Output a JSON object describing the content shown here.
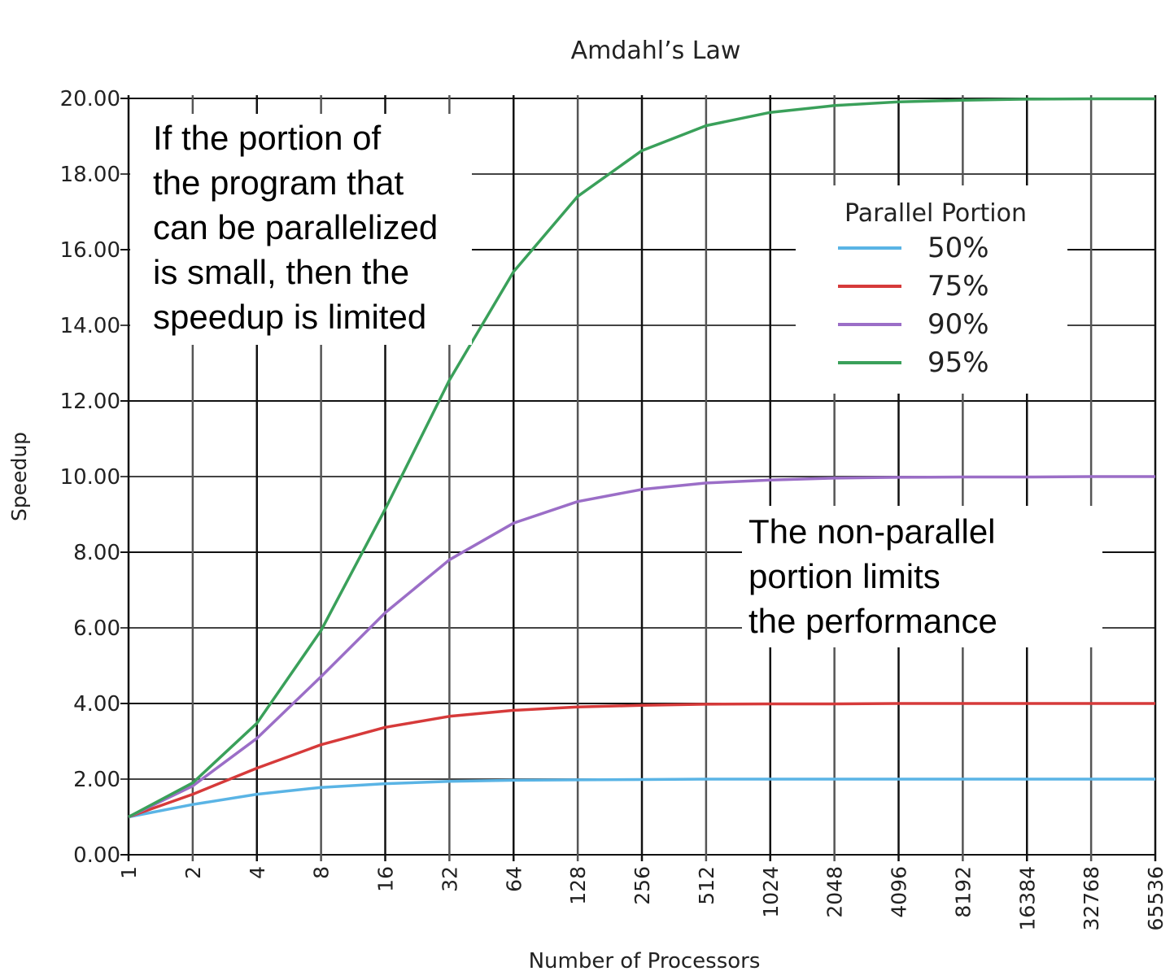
{
  "chart_data": {
    "type": "line",
    "title": "Amdahl’s Law",
    "xlabel": "Number of Processors",
    "ylabel": "Speedup",
    "x_scale": "log2",
    "categories": [
      "1",
      "2",
      "4",
      "8",
      "16",
      "32",
      "64",
      "128",
      "256",
      "512",
      "1024",
      "2048",
      "4096",
      "8192",
      "16384",
      "32768",
      "65536"
    ],
    "x": [
      1,
      2,
      4,
      8,
      16,
      32,
      64,
      128,
      256,
      512,
      1024,
      2048,
      4096,
      8192,
      16384,
      32768,
      65536
    ],
    "ylim": [
      0,
      20
    ],
    "yticks": [
      "0.00",
      "2.00",
      "4.00",
      "6.00",
      "8.00",
      "10.00",
      "12.00",
      "14.00",
      "16.00",
      "18.00",
      "20.00"
    ],
    "grid": true,
    "legend": {
      "title": "Parallel Portion",
      "placement": "top-right"
    },
    "series": [
      {
        "name": "50%",
        "color": "#5ab4e5",
        "values": [
          1.0,
          1.33,
          1.6,
          1.78,
          1.88,
          1.94,
          1.97,
          1.98,
          1.99,
          2.0,
          2.0,
          2.0,
          2.0,
          2.0,
          2.0,
          2.0,
          2.0
        ]
      },
      {
        "name": "75%",
        "color": "#d63a3a",
        "values": [
          1.0,
          1.6,
          2.29,
          2.91,
          3.37,
          3.66,
          3.82,
          3.91,
          3.95,
          3.98,
          3.99,
          3.99,
          4.0,
          4.0,
          4.0,
          4.0,
          4.0
        ]
      },
      {
        "name": "90%",
        "color": "#9b6ec7",
        "values": [
          1.0,
          1.82,
          3.08,
          4.71,
          6.4,
          7.8,
          8.77,
          9.34,
          9.66,
          9.83,
          9.91,
          9.96,
          9.98,
          9.99,
          9.99,
          10.0,
          10.0
        ]
      },
      {
        "name": "95%",
        "color": "#3aa05a",
        "values": [
          1.0,
          1.9,
          3.48,
          5.93,
          9.14,
          12.55,
          15.42,
          17.41,
          18.62,
          19.28,
          19.63,
          19.81,
          19.91,
          19.95,
          19.98,
          19.99,
          19.99
        ]
      }
    ],
    "annotations": [
      {
        "id": "small-portion",
        "position": "top-left",
        "lines": [
          "If the portion of",
          "the program that",
          "can be parallelized",
          "is small, then the",
          "speedup is limited"
        ]
      },
      {
        "id": "non-parallel",
        "position": "middle-right",
        "lines": [
          "The non-parallel",
          "portion limits",
          "the performance"
        ]
      }
    ]
  }
}
